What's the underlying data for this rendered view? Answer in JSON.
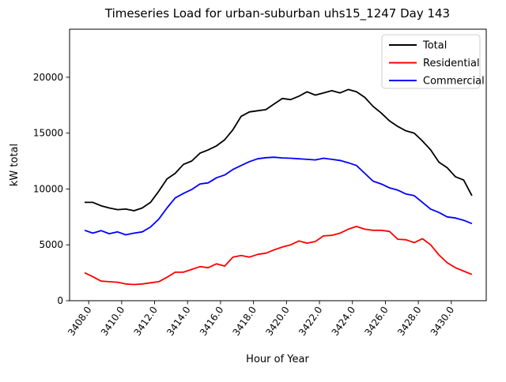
{
  "title": "Timeseries Load for urban-suburban uhs15_1247  Day 143",
  "chart_data": {
    "type": "line",
    "title": "Timeseries Load for urban-suburban uhs15_1247  Day 143",
    "xlabel": "Hour of Year",
    "ylabel": "kW total",
    "grid": false,
    "legend_position": "upper right",
    "xlim": [
      3406.84,
      3432.12
    ],
    "ylim": [
      0,
      24300
    ],
    "x_ticks": [
      3408,
      3410,
      3412,
      3414,
      3416,
      3418,
      3420,
      3422,
      3424,
      3426,
      3428,
      3430
    ],
    "x_tick_labels": [
      "3408.0",
      "3410.0",
      "3412.0",
      "3414.0",
      "3416.0",
      "3418.0",
      "3420.0",
      "3422.0",
      "3424.0",
      "3426.0",
      "3428.0",
      "3430.0"
    ],
    "y_ticks": [
      0,
      5000,
      10000,
      15000,
      20000
    ],
    "y_tick_labels": [
      "0",
      "5000",
      "10000",
      "15000",
      "20000"
    ],
    "x": [
      3407.75,
      3408.25,
      3408.75,
      3409.25,
      3409.75,
      3410.25,
      3410.75,
      3411.25,
      3411.75,
      3412.25,
      3412.75,
      3413.25,
      3413.75,
      3414.25,
      3414.75,
      3415.25,
      3415.75,
      3416.25,
      3416.75,
      3417.25,
      3417.75,
      3418.25,
      3418.75,
      3419.25,
      3419.75,
      3420.25,
      3420.75,
      3421.25,
      3421.75,
      3422.25,
      3422.75,
      3423.25,
      3423.75,
      3424.25,
      3424.75,
      3425.25,
      3425.75,
      3426.25,
      3426.75,
      3427.25,
      3427.75,
      3428.25,
      3428.75,
      3429.25,
      3429.75,
      3430.25,
      3430.75,
      3431.25
    ],
    "series": [
      {
        "name": "Total",
        "color": "#000000",
        "values": [
          8800,
          8800,
          8500,
          8300,
          8150,
          8200,
          8050,
          8300,
          8800,
          9800,
          10900,
          11400,
          12200,
          12500,
          13200,
          13500,
          13850,
          14400,
          15300,
          16500,
          16900,
          17000,
          17100,
          17600,
          18100,
          18000,
          18300,
          18700,
          18400,
          18600,
          18800,
          18600,
          18900,
          18700,
          18200,
          17400,
          16800,
          16100,
          15600,
          15200,
          15000,
          14300,
          13500,
          12400,
          11900,
          11100,
          10800,
          9400
        ]
      },
      {
        "name": "Residential",
        "color": "#ff0000",
        "values": [
          2500,
          2150,
          1750,
          1700,
          1650,
          1500,
          1450,
          1500,
          1600,
          1700,
          2100,
          2550,
          2550,
          2800,
          3050,
          2950,
          3300,
          3100,
          3900,
          4050,
          3900,
          4150,
          4250,
          4550,
          4800,
          5000,
          5350,
          5150,
          5300,
          5800,
          5850,
          6050,
          6400,
          6650,
          6400,
          6300,
          6300,
          6200,
          5500,
          5450,
          5200,
          5550,
          5000,
          4100,
          3400,
          2950,
          2650,
          2350
        ]
      },
      {
        "name": "Commercial",
        "color": "#0000ff",
        "values": [
          6300,
          6050,
          6270,
          6000,
          6160,
          5900,
          6050,
          6160,
          6600,
          7300,
          8300,
          9200,
          9600,
          9950,
          10450,
          10550,
          11000,
          11250,
          11750,
          12100,
          12450,
          12700,
          12800,
          12840,
          12780,
          12750,
          12700,
          12650,
          12600,
          12750,
          12650,
          12550,
          12350,
          12100,
          11400,
          10700,
          10450,
          10100,
          9900,
          9550,
          9400,
          8800,
          8200,
          7900,
          7500,
          7400,
          7200,
          6900
        ]
      }
    ]
  }
}
